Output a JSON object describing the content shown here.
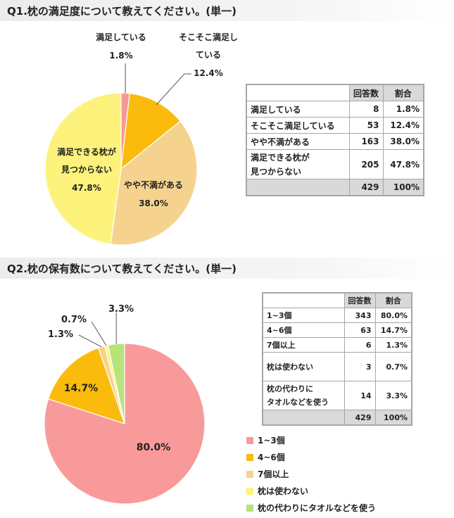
{
  "q1": {
    "title": "Q1.枕の満足度について教えてください。(単一)",
    "chart_data": {
      "type": "pie",
      "categories": [
        "満足している",
        "そこそこ満足している",
        "やや不満がある",
        "満足できる枕が見つからない"
      ],
      "values": [
        1.8,
        12.4,
        38.0,
        47.8
      ],
      "colors": [
        "#f4999a",
        "#fbbb0d",
        "#f5d38e",
        "#fdf27c"
      ],
      "labels": [
        {
          "lines": [
            "満足している"
          ],
          "pct": "1.8%"
        },
        {
          "lines": [
            "そこそこ満足し",
            "ている"
          ],
          "pct": "12.4%"
        },
        {
          "lines": [
            "やや不満がある"
          ],
          "pct": "38.0%"
        },
        {
          "lines": [
            "満足できる枕が",
            "見つからない"
          ],
          "pct": "47.8%"
        }
      ]
    },
    "table": {
      "headers": [
        "",
        "回答数",
        "割合"
      ],
      "rows": [
        {
          "label": "満足している",
          "count": "8",
          "pct": "1.8%"
        },
        {
          "label": "そこそこ満足している",
          "count": "53",
          "pct": "12.4%"
        },
        {
          "label": "やや不満がある",
          "count": "163",
          "pct": "38.0%"
        },
        {
          "label_lines": [
            "満足できる枕が",
            "見つからない"
          ],
          "count": "205",
          "pct": "47.8%"
        }
      ],
      "total": {
        "count": "429",
        "pct": "100%"
      }
    }
  },
  "q2": {
    "title": "Q2.枕の保有数について教えてください。(単一)",
    "chart_data": {
      "type": "pie",
      "categories": [
        "1~3個",
        "4~6個",
        "7個以上",
        "枕は使わない",
        "枕の代わりにタオルなどを使う"
      ],
      "values": [
        80.0,
        14.7,
        1.3,
        0.7,
        3.3
      ],
      "colors": [
        "#f99a9a",
        "#fbbb0d",
        "#f5d38e",
        "#fdf27c",
        "#b8e27a"
      ],
      "labels": [
        "80.0%",
        "14.7%",
        "1.3%",
        "0.7%",
        "3.3%"
      ],
      "legend": [
        "1~3個",
        "4~6個",
        "7個以上",
        "枕は使わない",
        "枕の代わりにタオルなどを使う"
      ]
    },
    "table": {
      "headers": [
        "",
        "回答数",
        "割合"
      ],
      "rows": [
        {
          "label": "1~3個",
          "count": "343",
          "pct": "80.0%"
        },
        {
          "label": "4~6個",
          "count": "63",
          "pct": "14.7%"
        },
        {
          "label": "7個以上",
          "count": "6",
          "pct": "1.3%"
        },
        {
          "label": "枕は使わない",
          "count": "3",
          "pct": "0.7%"
        },
        {
          "label_lines": [
            "枕の代わりに",
            "タオルなどを使う"
          ],
          "count": "14",
          "pct": "3.3%"
        }
      ],
      "total": {
        "count": "429",
        "pct": "100%"
      }
    }
  }
}
